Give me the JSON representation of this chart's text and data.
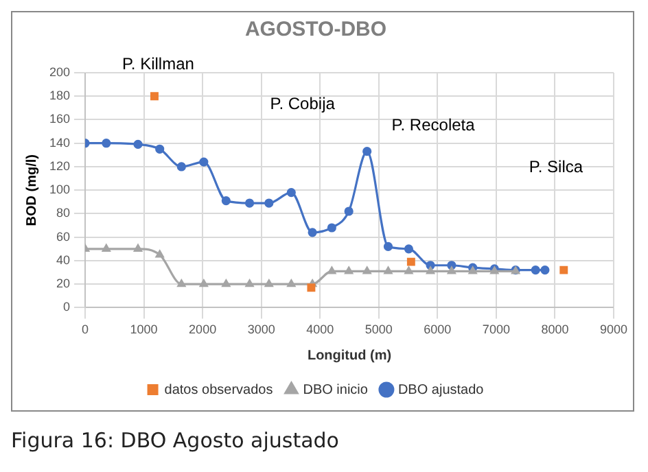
{
  "chart_data": {
    "type": "line",
    "title": "AGOSTO-DBO",
    "xlabel": "Longitud (m)",
    "ylabel": "BOD (mg/l)",
    "xlim": [
      0,
      9000
    ],
    "xticks": [
      0,
      1000,
      2000,
      3000,
      4000,
      5000,
      6000,
      7000,
      8000,
      9000
    ],
    "ylim": [
      0,
      200
    ],
    "yticks": [
      0,
      20,
      40,
      60,
      80,
      100,
      120,
      140,
      160,
      180,
      200
    ],
    "grid": true,
    "legend": "bottom",
    "series": [
      {
        "name": "datos observados",
        "type": "scatter",
        "marker": "square",
        "color": "#ed7d31",
        "x": [
          1180,
          3850,
          5550,
          8150
        ],
        "values": [
          180,
          17,
          39,
          32
        ]
      },
      {
        "name": "DBO inicio",
        "marker": "triangle",
        "color": "#a5a5a5",
        "x": [
          0,
          360,
          900,
          1270,
          1640,
          2020,
          2400,
          2800,
          3130,
          3510,
          3870,
          4200,
          4490,
          4800,
          5160,
          5510,
          5880,
          6240,
          6600,
          6970,
          7330
        ],
        "values": [
          50,
          50,
          50,
          45,
          20,
          20,
          20,
          20,
          20,
          20,
          20,
          31,
          31,
          31,
          31,
          31,
          31,
          31,
          31,
          31,
          31
        ]
      },
      {
        "name": "DBO ajustado",
        "marker": "circle",
        "color": "#4472c4",
        "x": [
          0,
          360,
          900,
          1270,
          1640,
          2020,
          2400,
          2800,
          3130,
          3510,
          3870,
          4200,
          4490,
          4800,
          5160,
          5510,
          5880,
          6240,
          6600,
          6970,
          7330,
          7670,
          7830
        ],
        "values": [
          140,
          140,
          139,
          135,
          120,
          124,
          91,
          89,
          89,
          98,
          64,
          68,
          82,
          133,
          52,
          50,
          36,
          36,
          34,
          33,
          32,
          32,
          32
        ]
      }
    ],
    "annotations": [
      "P. Killman",
      "P. Cobija",
      "P. Recoleta",
      "P. Silca",
      "Figura 16: DBO Agosto ajustado"
    ]
  }
}
